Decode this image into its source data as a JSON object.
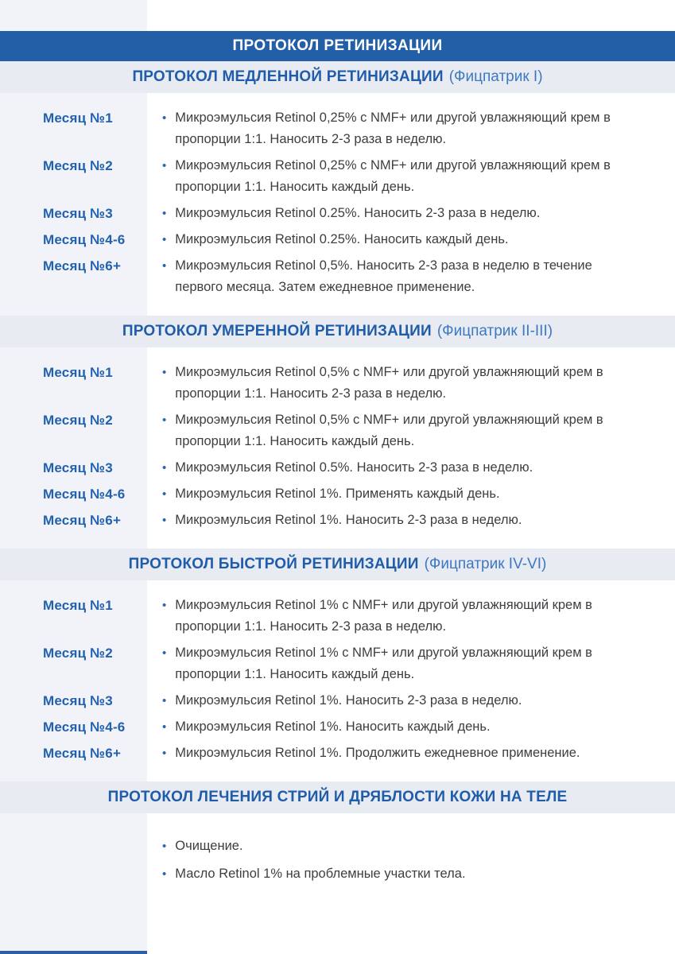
{
  "page_title": "ПРОТОКОЛ РЕТИНИЗАЦИИ",
  "colors": {
    "primary_blue": "#235FA7",
    "section_title_blue": "#1F5CA9",
    "subtitle_light_blue": "#3C79C2",
    "band_background": "#E9EBF3",
    "stripe_background": "#F2F3F9",
    "body_text": "#3C3E42",
    "bullet_blue": "#2A65B0"
  },
  "sections": [
    {
      "title": "ПРОТОКОЛ МЕДЛЕННОЙ РЕТИНИЗАЦИИ",
      "subtitle": "(Фицпатрик I)",
      "rows": [
        {
          "label": "Месяц №1",
          "text": "Микроэмульсия Retinol 0,25% с NMF+ или другой увлажняющий крем в пропорции 1:1. Наносить 2-3 раза в неделю."
        },
        {
          "label": "Месяц №2",
          "text": "Микроэмульсия Retinol 0,25% с NMF+ или другой увлажняющий крем в пропорции 1:1. Наносить каждый день."
        },
        {
          "label": "Месяц №3",
          "text": "Микроэмульсия Retinol 0.25%. Наносить 2-3 раза в неделю."
        },
        {
          "label": "Месяц №4-6",
          "text": "Микроэмульсия Retinol 0.25%. Наносить каждый день."
        },
        {
          "label": "Месяц №6+",
          "text": "Микроэмульсия Retinol 0,5%. Наносить 2-3 раза в неделю в течение первого месяца. Затем ежедневное применение."
        }
      ]
    },
    {
      "title": "ПРОТОКОЛ УМЕРЕННОЙ РЕТИНИЗАЦИИ",
      "subtitle": "(Фицпатрик II-III)",
      "rows": [
        {
          "label": "Месяц №1",
          "text": "Микроэмульсия Retinol 0,5% с NMF+ или другой увлажняющий крем в пропорции 1:1. Наносить 2-3 раза в неделю."
        },
        {
          "label": "Месяц №2",
          "text": "Микроэмульсия Retinol 0,5% с NMF+ или другой увлажняющий крем в пропорции 1:1. Наносить каждый день."
        },
        {
          "label": "Месяц №3",
          "text": "Микроэмульсия Retinol 0.5%. Наносить 2-3 раза в неделю."
        },
        {
          "label": "Месяц №4-6",
          "text": "Микроэмульсия Retinol 1%. Применять каждый день."
        },
        {
          "label": "Месяц №6+",
          "text": "Микроэмульсия Retinol 1%. Наносить 2-3 раза в неделю."
        }
      ]
    },
    {
      "title": "ПРОТОКОЛ БЫСТРОЙ РЕТИНИЗАЦИИ",
      "subtitle": "(Фицпатрик IV-VI)",
      "rows": [
        {
          "label": "Месяц №1",
          "text": "Микроэмульсия Retinol 1% с NMF+ или другой увлажняющий крем в пропорции 1:1. Наносить 2-3 раза в неделю."
        },
        {
          "label": "Месяц №2",
          "text": "Микроэмульсия Retinol 1% с NMF+ или другой увлажняющий крем в пропорции 1:1. Наносить каждый день."
        },
        {
          "label": "Месяц №3",
          "text": "Микроэмульсия Retinol 1%. Наносить 2-3 раза в неделю."
        },
        {
          "label": "Месяц №4-6",
          "text": "Микроэмульсия Retinol 1%. Наносить каждый день."
        },
        {
          "label": "Месяц №6+",
          "text": "Микроэмульсия Retinol 1%. Продолжить ежедневное применение."
        }
      ]
    },
    {
      "title": "ПРОТОКОЛ ЛЕЧЕНИЯ СТРИЙ И ДРЯБЛОСТИ КОЖИ НА ТЕЛЕ",
      "subtitle": "",
      "rows": [
        {
          "label": "",
          "text": "Очищение."
        },
        {
          "label": "",
          "text": "Масло Retinol 1% на проблемные участки тела."
        }
      ]
    }
  ],
  "bullet_glyph": "•"
}
